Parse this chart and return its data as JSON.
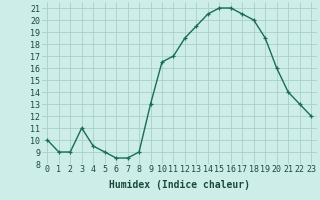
{
  "x": [
    0,
    1,
    2,
    3,
    4,
    5,
    6,
    7,
    8,
    9,
    10,
    11,
    12,
    13,
    14,
    15,
    16,
    17,
    18,
    19,
    20,
    21,
    22,
    23
  ],
  "y": [
    10,
    9,
    9,
    11,
    9.5,
    9,
    8.5,
    8.5,
    9,
    13,
    16.5,
    17,
    18.5,
    19.5,
    20.5,
    21,
    21,
    20.5,
    20,
    18.5,
    16,
    14,
    13,
    12
  ],
  "line_color": "#1a6b5a",
  "marker": "+",
  "bg_color": "#cdeee8",
  "grid_color": "#aacfc9",
  "xlabel": "Humidex (Indice chaleur)",
  "ylim": [
    8,
    21.5
  ],
  "xlim": [
    -0.5,
    23.5
  ],
  "yticks": [
    8,
    9,
    10,
    11,
    12,
    13,
    14,
    15,
    16,
    17,
    18,
    19,
    20,
    21
  ],
  "xticks": [
    0,
    1,
    2,
    3,
    4,
    5,
    6,
    7,
    8,
    9,
    10,
    11,
    12,
    13,
    14,
    15,
    16,
    17,
    18,
    19,
    20,
    21,
    22,
    23
  ],
  "tick_color": "#1a4a3a",
  "xlabel_fontsize": 7,
  "tick_fontsize": 6,
  "marker_size": 3,
  "linewidth": 1.0
}
